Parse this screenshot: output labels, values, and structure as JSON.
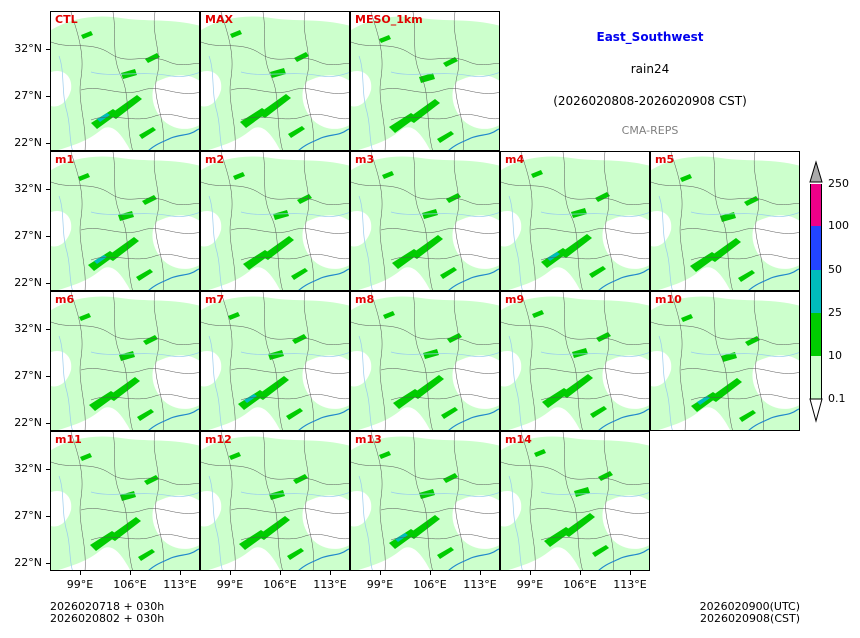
{
  "title": {
    "region": "East_Southwest",
    "variable": "rain24",
    "period": "(2026020808-2026020908 CST)",
    "model": "CMA-REPS"
  },
  "panels": [
    "CTL",
    "MAX",
    "MESO_1km",
    "m1",
    "m2",
    "m3",
    "m4",
    "m5",
    "m6",
    "m7",
    "m8",
    "m9",
    "m10",
    "m11",
    "m12",
    "m13",
    "m14"
  ],
  "axes": {
    "lat_labels": [
      "32°N",
      "27°N",
      "22°N"
    ],
    "lon_labels": [
      "99°E",
      "106°E",
      "113°E"
    ]
  },
  "colorbar": {
    "levels": [
      "0.1",
      "10",
      "25",
      "50",
      "100",
      "250"
    ],
    "colors": [
      "#ccffcc",
      "#00cc00",
      "#00bbbb",
      "#2244ff",
      "#ee0088"
    ],
    "extend_color_low": "#ffffff",
    "extend_color_high": "#aaaaaa"
  },
  "footer": {
    "init_utc": "2026020718  +  030h",
    "init_cst": "2026020802  +  030h",
    "valid_utc": "2026020900(UTC)",
    "valid_cst": "2026020908(CST)"
  }
}
